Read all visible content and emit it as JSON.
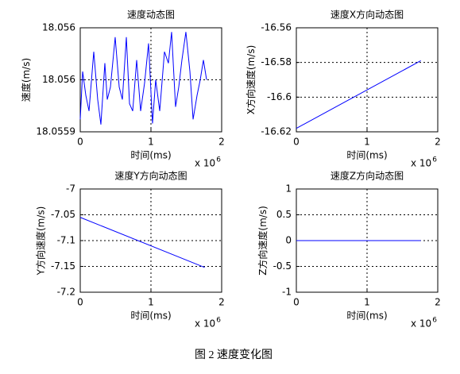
{
  "chart_data": [
    {
      "type": "line",
      "title": "速度动态图",
      "xlabel": "时间(ms)",
      "ylabel": "速度(m/s)",
      "x_multiplier": "x 10",
      "x_multiplier_exp": "6",
      "xlim": [
        0,
        2
      ],
      "xticks": [
        0,
        1,
        2
      ],
      "ylim": [
        18.0559,
        18.056
      ],
      "yticks": [
        18.0559,
        {
          "value": 18.05595,
          "label": "18.056"
        },
        18.056
      ],
      "grid": true,
      "color": "#0000ff",
      "x": [
        0,
        0.034,
        0.079,
        0.124,
        0.191,
        0.247,
        0.292,
        0.348,
        0.382,
        0.427,
        0.494,
        0.551,
        0.596,
        0.652,
        0.697,
        0.742,
        0.798,
        0.854,
        0.91,
        0.966,
        1.022,
        1.067,
        1.124,
        1.191,
        1.247,
        1.292,
        1.348,
        1.393,
        1.438,
        1.494,
        1.551,
        1.596,
        1.652,
        1.697,
        1.742,
        1.787
      ],
      "values": [
        18.055912,
        18.055958,
        18.055935,
        18.05592,
        18.055977,
        18.055931,
        18.055907,
        18.055966,
        18.055931,
        18.055943,
        18.055991,
        18.055943,
        18.055931,
        18.055991,
        18.055927,
        18.05592,
        18.055969,
        18.05592,
        18.055947,
        18.055985,
        18.055908,
        18.05595,
        18.05592,
        18.055977,
        18.055966,
        18.055996,
        18.055924,
        18.055943,
        18.055969,
        18.055996,
        18.055958,
        18.055912,
        18.055935,
        18.05595,
        18.055969,
        18.05595
      ]
    },
    {
      "type": "line",
      "title": "速度X方向动态图",
      "xlabel": "时间(ms)",
      "ylabel": "X方向速度(m/s)",
      "x_multiplier": "x 10",
      "x_multiplier_exp": "6",
      "xlim": [
        0,
        2
      ],
      "xticks": [
        0,
        1,
        2
      ],
      "ylim": [
        -16.62,
        -16.56
      ],
      "yticks": [
        -16.62,
        -16.6,
        -16.58,
        -16.56
      ],
      "grid": true,
      "color": "#0000ff",
      "x": [
        0,
        1.76
      ],
      "values": [
        -16.618,
        -16.579
      ]
    },
    {
      "type": "line",
      "title": "速度Y方向动态图",
      "xlabel": "时间(ms)",
      "ylabel": "Y方向速度(m/s)",
      "x_multiplier": "x 10",
      "x_multiplier_exp": "6",
      "xlim": [
        0,
        2
      ],
      "xticks": [
        0,
        1,
        2
      ],
      "ylim": [
        -7.2,
        -7
      ],
      "yticks": [
        -7.2,
        -7.15,
        -7.1,
        -7.05,
        -7
      ],
      "grid": true,
      "color": "#0000ff",
      "x": [
        0,
        1.76
      ],
      "values": [
        -7.055,
        -7.152
      ]
    },
    {
      "type": "line",
      "title": "速度Z方向动态图",
      "xlabel": "时间(ms)",
      "ylabel": "Z方向速度(m/s)",
      "x_multiplier": "x 10",
      "x_multiplier_exp": "6",
      "xlim": [
        0,
        2
      ],
      "xticks": [
        0,
        1,
        2
      ],
      "ylim": [
        -1,
        1
      ],
      "yticks": [
        -1,
        -0.5,
        0,
        0.5,
        1
      ],
      "grid": true,
      "color": "#0000ff",
      "x": [
        0,
        1.76
      ],
      "values": [
        0,
        0
      ]
    }
  ],
  "caption": "图 2  速度变化图"
}
